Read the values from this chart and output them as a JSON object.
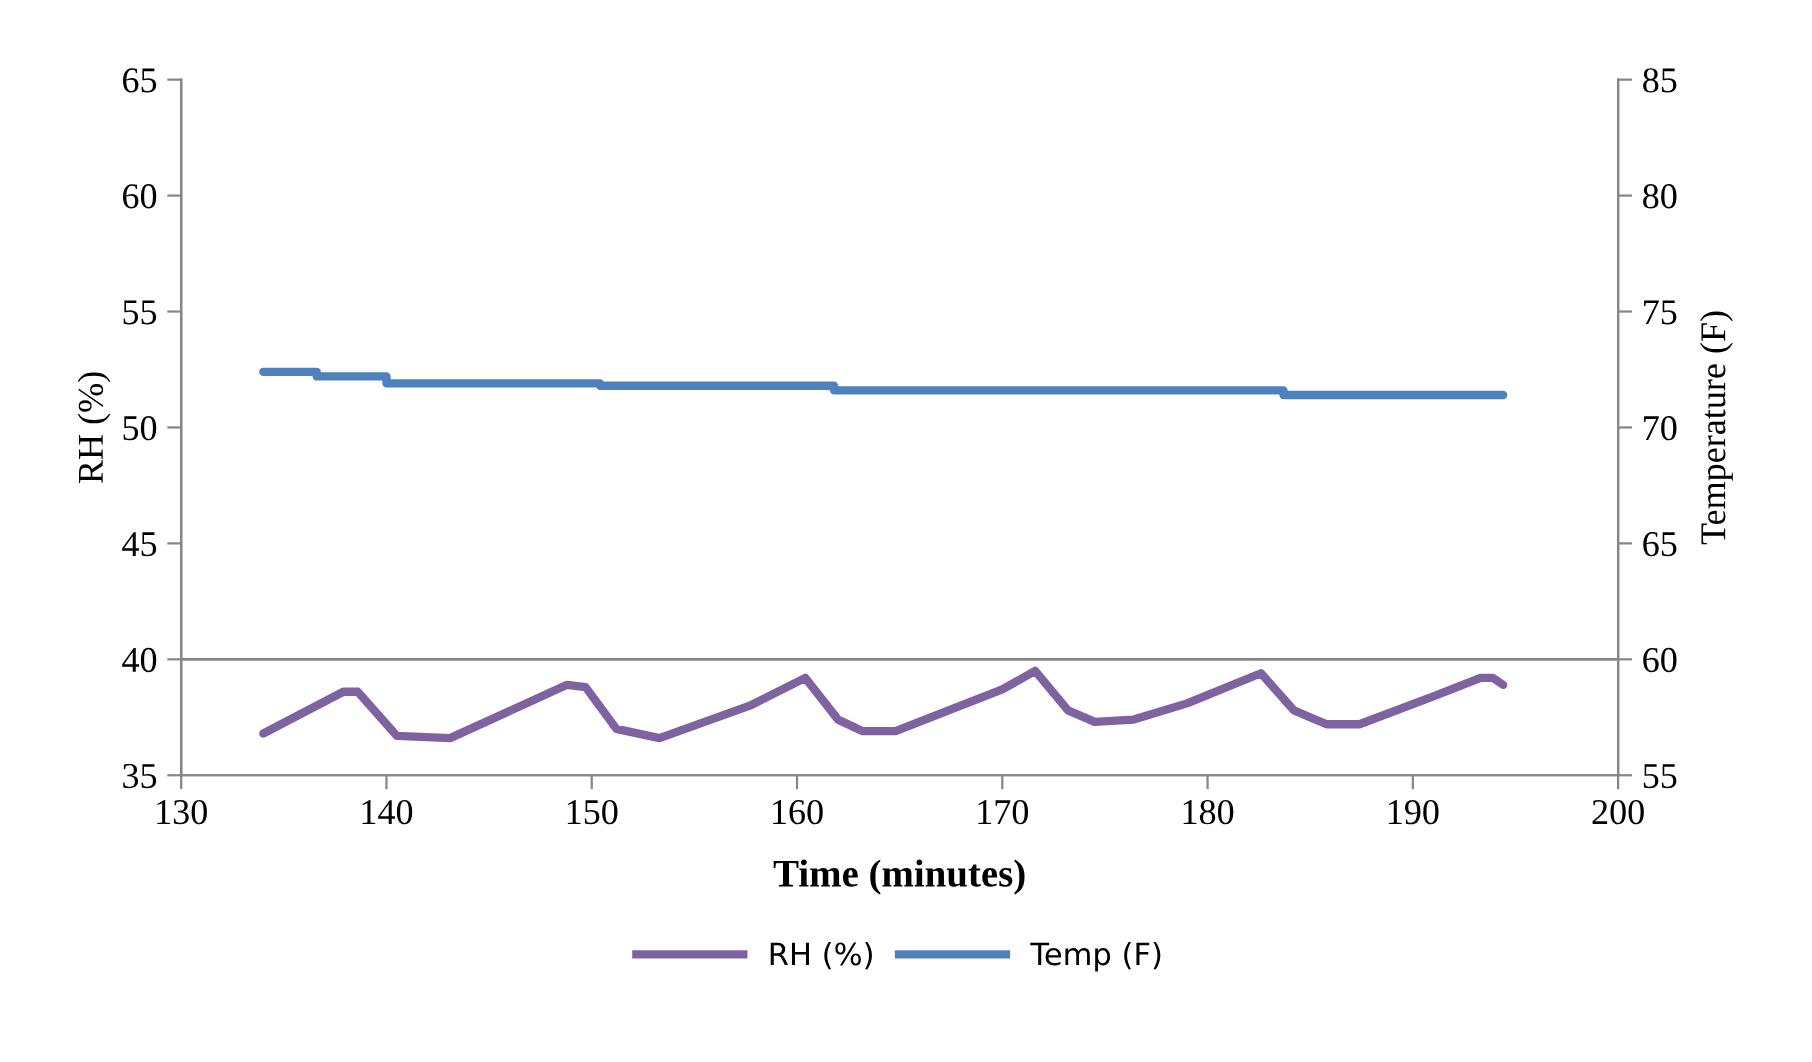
{
  "chart_data": {
    "type": "line",
    "xlabel": "Time (minutes)",
    "ylabel": "RH (%)",
    "y2label": "Temperature (F)",
    "xlim": [
      130,
      200
    ],
    "xticks": [
      130,
      140,
      150,
      160,
      170,
      180,
      190,
      200
    ],
    "ylim": [
      35,
      65
    ],
    "yticks": [
      35,
      40,
      45,
      50,
      55,
      60,
      65
    ],
    "y2lim": [
      55,
      85
    ],
    "y2ticks": [
      55,
      60,
      65,
      70,
      75,
      80,
      85
    ],
    "grid": false,
    "legend": "bottom",
    "marker": "none",
    "line_style": "solid",
    "ref_lines": [
      {
        "axis": "y",
        "value": 40,
        "color": "#868686"
      }
    ],
    "series": [
      {
        "name": "RH (%)",
        "color": "#7f63a1",
        "x": [
          134.0,
          137.9,
          138.6,
          140.5,
          143.1,
          148.8,
          149.7,
          151.2,
          153.3,
          157.7,
          160.4,
          162.0,
          163.2,
          164.8,
          170.0,
          171.6,
          173.2,
          174.5,
          176.4,
          179.0,
          182.6,
          184.2,
          185.8,
          187.4,
          191.0,
          193.3,
          193.9,
          194.4
        ],
        "values": [
          36.8,
          38.6,
          38.6,
          36.7,
          36.6,
          38.9,
          38.8,
          37.0,
          36.6,
          38.0,
          39.2,
          37.4,
          36.9,
          36.9,
          38.7,
          39.5,
          37.8,
          37.3,
          37.4,
          38.1,
          39.4,
          37.8,
          37.2,
          37.2,
          38.4,
          39.2,
          39.2,
          38.9
        ]
      },
      {
        "name": "Temp (F)",
        "color": "#4f81bd",
        "type": "step",
        "axis": "y2",
        "x": [
          134.0,
          136.6,
          140.0,
          150.4,
          161.8,
          183.7,
          194.4
        ],
        "values": [
          72.4,
          72.2,
          71.9,
          71.8,
          71.6,
          71.4,
          71.4
        ]
      }
    ]
  }
}
